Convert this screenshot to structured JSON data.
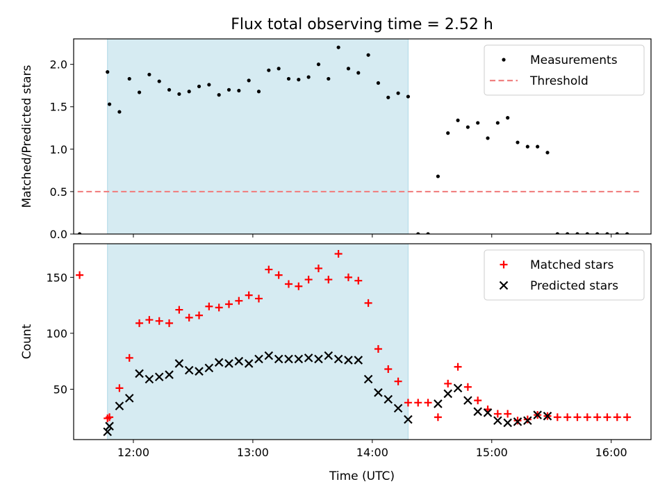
{
  "title": "Flux total observing time = 2.52 h",
  "xlabel": "Time (UTC)",
  "colors": {
    "measurements": "#000000",
    "threshold": "#f08080",
    "matched": "#ff0000",
    "predicted": "#000000",
    "span": "#add8e6"
  },
  "chart_data": [
    {
      "type": "scatter",
      "ylabel": "Matched/Predicted stars",
      "xlim": [
        "11:30",
        "16:20"
      ],
      "ylim": [
        0,
        2.3
      ],
      "yticks": [
        "0.0",
        "0.5",
        "1.0",
        "1.5",
        "2.0"
      ],
      "shaded_span": [
        "11:47",
        "14:18"
      ],
      "legend": {
        "placement": "upper right",
        "entries": [
          "Measurements",
          "Threshold"
        ]
      },
      "threshold": {
        "name": "Threshold",
        "value": 0.5,
        "x": [
          "11:32",
          "16:14"
        ],
        "style": "dashed"
      },
      "series": [
        {
          "name": "Measurements",
          "marker": "dot",
          "points": [
            [
              "11:33",
              0.0
            ],
            [
              "11:47",
              1.91
            ],
            [
              "11:48",
              1.53
            ],
            [
              "11:53",
              1.44
            ],
            [
              "11:58",
              1.83
            ],
            [
              "12:03",
              1.67
            ],
            [
              "12:08",
              1.88
            ],
            [
              "12:13",
              1.8
            ],
            [
              "12:18",
              1.7
            ],
            [
              "12:23",
              1.65
            ],
            [
              "12:28",
              1.68
            ],
            [
              "12:33",
              1.74
            ],
            [
              "12:38",
              1.76
            ],
            [
              "12:43",
              1.64
            ],
            [
              "12:48",
              1.7
            ],
            [
              "12:53",
              1.69
            ],
            [
              "12:58",
              1.81
            ],
            [
              "13:03",
              1.68
            ],
            [
              "13:08",
              1.93
            ],
            [
              "13:13",
              1.95
            ],
            [
              "13:18",
              1.83
            ],
            [
              "13:23",
              1.82
            ],
            [
              "13:28",
              1.85
            ],
            [
              "13:33",
              2.0
            ],
            [
              "13:38",
              1.83
            ],
            [
              "13:43",
              2.2
            ],
            [
              "13:48",
              1.95
            ],
            [
              "13:53",
              1.9
            ],
            [
              "13:58",
              2.11
            ],
            [
              "14:03",
              1.78
            ],
            [
              "14:08",
              1.61
            ],
            [
              "14:13",
              1.66
            ],
            [
              "14:18",
              1.62
            ],
            [
              "14:23",
              0.0
            ],
            [
              "14:28",
              0.0
            ],
            [
              "14:33",
              0.68
            ],
            [
              "14:38",
              1.19
            ],
            [
              "14:43",
              1.34
            ],
            [
              "14:48",
              1.26
            ],
            [
              "14:53",
              1.31
            ],
            [
              "14:58",
              1.13
            ],
            [
              "15:03",
              1.31
            ],
            [
              "15:08",
              1.37
            ],
            [
              "15:13",
              1.08
            ],
            [
              "15:18",
              1.03
            ],
            [
              "15:23",
              1.03
            ],
            [
              "15:28",
              0.96
            ],
            [
              "15:33",
              0.0
            ],
            [
              "15:38",
              0.0
            ],
            [
              "15:43",
              0.0
            ],
            [
              "15:48",
              0.0
            ],
            [
              "15:53",
              0.0
            ],
            [
              "15:58",
              0.0
            ],
            [
              "16:03",
              0.0
            ],
            [
              "16:08",
              0.0
            ]
          ]
        }
      ]
    },
    {
      "type": "scatter",
      "ylabel": "Count",
      "xlim": [
        "11:30",
        "16:20"
      ],
      "ylim": [
        5,
        180
      ],
      "yticks": [
        "50",
        "100",
        "150"
      ],
      "xticks": [
        "12:00",
        "13:00",
        "14:00",
        "15:00",
        "16:00"
      ],
      "shaded_span": [
        "11:47",
        "14:18"
      ],
      "legend": {
        "placement": "upper right",
        "entries": [
          "Matched stars",
          "Predicted stars"
        ]
      },
      "series": [
        {
          "name": "Matched stars",
          "marker": "plus",
          "points": [
            [
              "11:33",
              152
            ],
            [
              "11:47",
              24
            ],
            [
              "11:48",
              25
            ],
            [
              "11:53",
              51
            ],
            [
              "11:58",
              78
            ],
            [
              "12:03",
              109
            ],
            [
              "12:08",
              112
            ],
            [
              "12:13",
              111
            ],
            [
              "12:18",
              109
            ],
            [
              "12:23",
              121
            ],
            [
              "12:28",
              114
            ],
            [
              "12:33",
              116
            ],
            [
              "12:38",
              124
            ],
            [
              "12:43",
              123
            ],
            [
              "12:48",
              126
            ],
            [
              "12:53",
              129
            ],
            [
              "12:58",
              134
            ],
            [
              "13:03",
              131
            ],
            [
              "13:08",
              157
            ],
            [
              "13:13",
              152
            ],
            [
              "13:18",
              144
            ],
            [
              "13:23",
              142
            ],
            [
              "13:28",
              148
            ],
            [
              "13:33",
              158
            ],
            [
              "13:38",
              148
            ],
            [
              "13:43",
              171
            ],
            [
              "13:48",
              150
            ],
            [
              "13:53",
              147
            ],
            [
              "13:58",
              127
            ],
            [
              "14:03",
              86
            ],
            [
              "14:08",
              68
            ],
            [
              "14:13",
              57
            ],
            [
              "14:18",
              38
            ],
            [
              "14:23",
              38
            ],
            [
              "14:28",
              38
            ],
            [
              "14:33",
              25
            ],
            [
              "14:38",
              55
            ],
            [
              "14:43",
              70
            ],
            [
              "14:48",
              52
            ],
            [
              "14:53",
              40
            ],
            [
              "14:58",
              32
            ],
            [
              "15:03",
              28
            ],
            [
              "15:08",
              28
            ],
            [
              "15:13",
              22
            ],
            [
              "15:18",
              23
            ],
            [
              "15:23",
              27
            ],
            [
              "15:28",
              26
            ],
            [
              "15:33",
              25
            ],
            [
              "15:38",
              25
            ],
            [
              "15:43",
              25
            ],
            [
              "15:48",
              25
            ],
            [
              "15:53",
              25
            ],
            [
              "15:58",
              25
            ],
            [
              "16:03",
              25
            ],
            [
              "16:08",
              25
            ]
          ]
        },
        {
          "name": "Predicted stars",
          "marker": "x",
          "points": [
            [
              "11:47",
              12
            ],
            [
              "11:48",
              17
            ],
            [
              "11:53",
              35
            ],
            [
              "11:58",
              42
            ],
            [
              "12:03",
              64
            ],
            [
              "12:08",
              59
            ],
            [
              "12:13",
              61
            ],
            [
              "12:18",
              63
            ],
            [
              "12:23",
              73
            ],
            [
              "12:28",
              67
            ],
            [
              "12:33",
              66
            ],
            [
              "12:38",
              69
            ],
            [
              "12:43",
              74
            ],
            [
              "12:48",
              73
            ],
            [
              "12:53",
              75
            ],
            [
              "12:58",
              73
            ],
            [
              "13:03",
              77
            ],
            [
              "13:08",
              80
            ],
            [
              "13:13",
              77
            ],
            [
              "13:18",
              77
            ],
            [
              "13:23",
              77
            ],
            [
              "13:28",
              78
            ],
            [
              "13:33",
              77
            ],
            [
              "13:38",
              80
            ],
            [
              "13:43",
              77
            ],
            [
              "13:48",
              76
            ],
            [
              "13:53",
              76
            ],
            [
              "13:58",
              59
            ],
            [
              "14:03",
              47
            ],
            [
              "14:08",
              41
            ],
            [
              "14:13",
              33
            ],
            [
              "14:18",
              23
            ],
            [
              "14:33",
              37
            ],
            [
              "14:38",
              46
            ],
            [
              "14:43",
              51
            ],
            [
              "14:48",
              40
            ],
            [
              "14:53",
              30
            ],
            [
              "14:58",
              29
            ],
            [
              "15:03",
              22
            ],
            [
              "15:08",
              20
            ],
            [
              "15:13",
              21
            ],
            [
              "15:18",
              22
            ],
            [
              "15:23",
              27
            ],
            [
              "15:28",
              26
            ]
          ]
        }
      ]
    }
  ]
}
